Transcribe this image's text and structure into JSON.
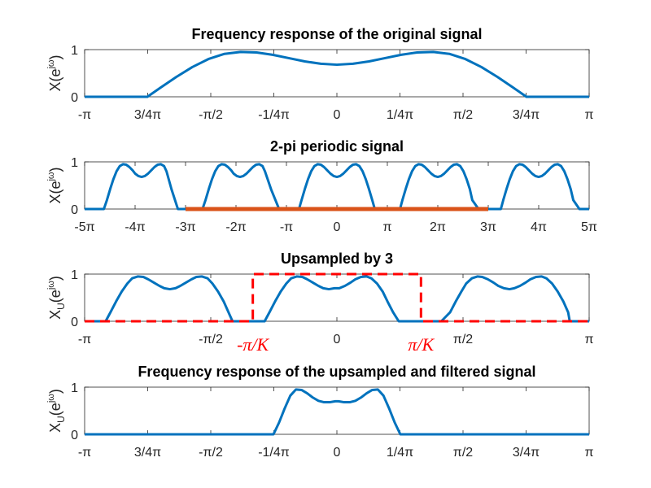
{
  "chart_data": [
    {
      "type": "line",
      "title": "Frequency response of the original signal",
      "ylabel": "X(e^jω)",
      "ylabel_parts": {
        "base": "X",
        "sub": "",
        "open": "(e",
        "sup": "jω",
        "close": ")"
      },
      "xlim": [
        -3.14159,
        3.14159
      ],
      "ylim": [
        0,
        1
      ],
      "yticks": [
        {
          "value": 0,
          "label": "0"
        },
        {
          "value": 1,
          "label": "1"
        }
      ],
      "xticks": [
        {
          "value": -3.14159,
          "label": "-π"
        },
        {
          "value": -2.35619,
          "label": "3/4π"
        },
        {
          "value": -1.5708,
          "label": "-π/2"
        },
        {
          "value": -0.7854,
          "label": "-1/4π"
        },
        {
          "value": 0,
          "label": "0"
        },
        {
          "value": 0.7854,
          "label": "1/4π"
        },
        {
          "value": 1.5708,
          "label": "π/2"
        },
        {
          "value": 2.35619,
          "label": "3/4π"
        },
        {
          "value": 3.14159,
          "label": "π"
        }
      ],
      "series": [
        {
          "color": "#0072bd",
          "x": [
            -3.1416,
            -2.9,
            -2.7,
            -2.5,
            -2.36,
            -2.2,
            -2.0,
            -1.8,
            -1.6,
            -1.4,
            -1.2,
            -1.0,
            -0.8,
            -0.6,
            -0.4,
            -0.2,
            0.0,
            0.2,
            0.4,
            0.6,
            0.8,
            1.0,
            1.2,
            1.4,
            1.6,
            1.8,
            2.0,
            2.2,
            2.36,
            2.5,
            2.7,
            2.9,
            3.1416
          ],
          "y": [
            0,
            0,
            0,
            0,
            0,
            0.19,
            0.42,
            0.63,
            0.8,
            0.91,
            0.95,
            0.94,
            0.89,
            0.82,
            0.75,
            0.7,
            0.68,
            0.7,
            0.75,
            0.82,
            0.89,
            0.94,
            0.95,
            0.91,
            0.8,
            0.63,
            0.42,
            0.19,
            0,
            0,
            0,
            0,
            0
          ]
        }
      ]
    },
    {
      "type": "line",
      "title": "2-pi periodic signal",
      "ylabel": "X(e^jω)",
      "ylabel_parts": {
        "base": "X",
        "sub": "",
        "open": "(e",
        "sup": "jω",
        "close": ")"
      },
      "xlim": [
        -15.708,
        15.708
      ],
      "ylim": [
        0,
        1
      ],
      "yticks": [
        {
          "value": 0,
          "label": "0"
        },
        {
          "value": 1,
          "label": "1"
        }
      ],
      "xticks": [
        {
          "value": -15.708,
          "label": "-5π"
        },
        {
          "value": -12.566,
          "label": "-4π"
        },
        {
          "value": -9.425,
          "label": "-3π"
        },
        {
          "value": -6.283,
          "label": "-2π"
        },
        {
          "value": -3.1416,
          "label": "-π"
        },
        {
          "value": 0,
          "label": "0"
        },
        {
          "value": 3.1416,
          "label": "π"
        },
        {
          "value": 6.283,
          "label": "2π"
        },
        {
          "value": 9.425,
          "label": "3π"
        },
        {
          "value": 12.566,
          "label": "4π"
        },
        {
          "value": 15.708,
          "label": "5π"
        }
      ],
      "series": [
        {
          "color": "#0072bd",
          "x": [
            -15.708,
            -15.1,
            -14.51,
            -14.32,
            -14.12,
            -13.92,
            -13.72,
            -13.52,
            -13.32,
            -13.12,
            -12.92,
            -12.72,
            -12.56,
            -12.36,
            -12.16,
            -11.96,
            -11.76,
            -11.56,
            -11.36,
            -11.16,
            -10.96,
            -10.76,
            -10.61,
            -10.3,
            -9.9,
            -9.425,
            -8.82,
            -8.37,
            -8.18,
            -7.98,
            -7.78,
            -7.58,
            -7.38,
            -7.18,
            -6.98,
            -6.78,
            -6.58,
            -6.43,
            -6.23,
            -6.03,
            -5.83,
            -5.63,
            -5.43,
            -5.23,
            -5.03,
            -4.83,
            -4.63,
            -4.48,
            -4.1,
            -3.6,
            -3.1416,
            -2.7,
            -2.36,
            -2.2,
            -2.0,
            -1.8,
            -1.6,
            -1.4,
            -1.2,
            -1.0,
            -0.8,
            -0.6,
            -0.4,
            -0.2,
            0.0,
            0.2,
            0.4,
            0.6,
            0.8,
            1.0,
            1.2,
            1.4,
            1.6,
            1.8,
            2.0,
            2.2,
            2.36,
            2.7,
            3.1416,
            3.6,
            3.93,
            4.08,
            4.28,
            4.48,
            4.68,
            4.88,
            5.08,
            5.28,
            5.48,
            5.68,
            5.88,
            6.08,
            6.28,
            6.48,
            6.68,
            6.88,
            7.08,
            7.28,
            7.48,
            7.68,
            7.88,
            8.08,
            8.28,
            8.43,
            8.82,
            9.425,
            9.9,
            10.21,
            10.36,
            10.56,
            10.76,
            10.96,
            11.16,
            11.36,
            11.56,
            11.76,
            11.96,
            12.16,
            12.36,
            12.56,
            12.76,
            12.96,
            13.16,
            13.36,
            13.56,
            13.76,
            13.96,
            14.16,
            14.36,
            14.56,
            14.72,
            15.1,
            15.708
          ],
          "y": [
            0,
            0,
            0,
            0.19,
            0.42,
            0.63,
            0.8,
            0.91,
            0.95,
            0.94,
            0.89,
            0.82,
            0.75,
            0.7,
            0.68,
            0.7,
            0.75,
            0.82,
            0.89,
            0.94,
            0.95,
            0.91,
            0.8,
            0.42,
            0,
            0,
            0,
            0,
            0.19,
            0.42,
            0.63,
            0.8,
            0.91,
            0.95,
            0.94,
            0.89,
            0.82,
            0.75,
            0.7,
            0.68,
            0.7,
            0.75,
            0.82,
            0.89,
            0.94,
            0.95,
            0.91,
            0.8,
            0.42,
            0,
            0,
            0,
            0,
            0.19,
            0.42,
            0.63,
            0.8,
            0.91,
            0.95,
            0.94,
            0.89,
            0.82,
            0.75,
            0.7,
            0.68,
            0.7,
            0.75,
            0.82,
            0.89,
            0.94,
            0.95,
            0.91,
            0.8,
            0.63,
            0.42,
            0.19,
            0,
            0,
            0,
            0,
            0,
            0.19,
            0.42,
            0.63,
            0.8,
            0.91,
            0.95,
            0.94,
            0.89,
            0.82,
            0.75,
            0.7,
            0.68,
            0.7,
            0.75,
            0.82,
            0.89,
            0.94,
            0.95,
            0.91,
            0.8,
            0.63,
            0.42,
            0.19,
            0,
            0,
            0,
            0,
            0.19,
            0.42,
            0.63,
            0.8,
            0.91,
            0.95,
            0.94,
            0.89,
            0.82,
            0.75,
            0.7,
            0.68,
            0.7,
            0.75,
            0.82,
            0.89,
            0.94,
            0.95,
            0.91,
            0.8,
            0.63,
            0.42,
            0.19,
            0,
            0
          ]
        },
        {
          "color": "#d95319",
          "x": [
            -9.425,
            9.425
          ],
          "y": [
            0,
            0
          ]
        }
      ]
    },
    {
      "type": "line",
      "title": "Upsampled by 3",
      "ylabel": "X_U(e^jω)",
      "ylabel_parts": {
        "base": "X",
        "sub": "U",
        "open": "(e",
        "sup": "jω",
        "close": ")"
      },
      "xlim": [
        -3.14159,
        3.14159
      ],
      "ylim": [
        0,
        1
      ],
      "yticks": [
        {
          "value": 0,
          "label": "0"
        },
        {
          "value": 1,
          "label": "1"
        }
      ],
      "xticks": [
        {
          "value": -3.14159,
          "label": "-π"
        },
        {
          "value": -1.5708,
          "label": "-π/2"
        },
        {
          "value": 0,
          "label": "0"
        },
        {
          "value": 1.5708,
          "label": "π/2"
        },
        {
          "value": 3.14159,
          "label": "π"
        }
      ],
      "annotations": [
        {
          "value": -1.0472,
          "label": "-π/K"
        },
        {
          "value": 1.0472,
          "label": "π/K"
        }
      ],
      "series": [
        {
          "color": "#0072bd",
          "x": [
            -3.1416,
            -2.9,
            -2.88,
            -2.82,
            -2.75,
            -2.68,
            -2.61,
            -2.55,
            -2.48,
            -2.41,
            -2.35,
            -2.28,
            -2.21,
            -2.15,
            -2.08,
            -2.01,
            -1.95,
            -1.88,
            -1.81,
            -1.75,
            -1.68,
            -1.61,
            -1.55,
            -1.48,
            -1.41,
            -1.3,
            -1.2,
            -1.1,
            -0.9,
            -0.84,
            -0.77,
            -0.7,
            -0.63,
            -0.57,
            -0.5,
            -0.43,
            -0.37,
            -0.3,
            -0.23,
            -0.17,
            -0.1,
            -0.03,
            0.03,
            0.1,
            0.17,
            0.23,
            0.3,
            0.37,
            0.43,
            0.5,
            0.57,
            0.63,
            0.7,
            0.77,
            0.84,
            0.9,
            1.1,
            1.3,
            1.41,
            1.48,
            1.55,
            1.61,
            1.68,
            1.75,
            1.81,
            1.88,
            1.95,
            2.01,
            2.08,
            2.15,
            2.21,
            2.28,
            2.35,
            2.41,
            2.48,
            2.55,
            2.61,
            2.68,
            2.75,
            2.82,
            2.88,
            2.9,
            3.1416
          ],
          "y": [
            0,
            0,
            0,
            0.19,
            0.42,
            0.63,
            0.8,
            0.91,
            0.95,
            0.94,
            0.89,
            0.82,
            0.75,
            0.7,
            0.68,
            0.7,
            0.75,
            0.82,
            0.89,
            0.94,
            0.95,
            0.91,
            0.8,
            0.63,
            0.42,
            0,
            0,
            0,
            0,
            0.19,
            0.42,
            0.63,
            0.8,
            0.91,
            0.95,
            0.94,
            0.89,
            0.82,
            0.75,
            0.7,
            0.68,
            0.7,
            0.7,
            0.75,
            0.82,
            0.89,
            0.94,
            0.95,
            0.91,
            0.8,
            0.63,
            0.42,
            0.19,
            0,
            0,
            0,
            0,
            0,
            0.19,
            0.42,
            0.63,
            0.8,
            0.91,
            0.95,
            0.94,
            0.89,
            0.82,
            0.75,
            0.7,
            0.68,
            0.7,
            0.75,
            0.82,
            0.89,
            0.94,
            0.95,
            0.91,
            0.8,
            0.63,
            0.42,
            0.19,
            0,
            0
          ]
        },
        {
          "color": "#ff0000",
          "dash": true,
          "x": [
            -3.1416,
            -1.0472,
            -1.0472,
            1.0472,
            1.0472,
            3.1416
          ],
          "y": [
            0,
            0,
            1,
            1,
            0,
            0
          ]
        }
      ]
    },
    {
      "type": "line",
      "title": "Frequency response of the upsampled and filtered signal",
      "ylabel": "X_U(e^jω)",
      "ylabel_parts": {
        "base": "X",
        "sub": "U",
        "open": "(e",
        "sup": "jω",
        "close": ")"
      },
      "xlim": [
        -3.14159,
        3.14159
      ],
      "ylim": [
        0,
        1
      ],
      "yticks": [
        {
          "value": 0,
          "label": "0"
        },
        {
          "value": 1,
          "label": "1"
        }
      ],
      "xticks": [
        {
          "value": -3.14159,
          "label": "-π"
        },
        {
          "value": -2.35619,
          "label": "3/4π"
        },
        {
          "value": -1.5708,
          "label": "-π/2"
        },
        {
          "value": -0.7854,
          "label": "-1/4π"
        },
        {
          "value": 0,
          "label": "0"
        },
        {
          "value": 0.7854,
          "label": "1/4π"
        },
        {
          "value": 1.5708,
          "label": "π/2"
        },
        {
          "value": 2.35619,
          "label": "3/4π"
        },
        {
          "value": 3.14159,
          "label": "π"
        }
      ],
      "series": [
        {
          "color": "#0072bd",
          "x": [
            -3.1416,
            -1.0,
            -0.79,
            -0.72,
            -0.65,
            -0.58,
            -0.51,
            -0.44,
            -0.37,
            -0.3,
            -0.23,
            -0.16,
            -0.09,
            -0.02,
            0.02,
            0.09,
            0.16,
            0.23,
            0.3,
            0.37,
            0.44,
            0.51,
            0.58,
            0.65,
            0.72,
            0.79,
            1.0,
            3.1416
          ],
          "y": [
            0,
            0,
            0,
            0.25,
            0.55,
            0.82,
            0.95,
            0.94,
            0.87,
            0.78,
            0.71,
            0.68,
            0.68,
            0.7,
            0.7,
            0.68,
            0.68,
            0.71,
            0.78,
            0.87,
            0.94,
            0.95,
            0.82,
            0.55,
            0.25,
            0,
            0,
            0
          ]
        }
      ]
    }
  ]
}
